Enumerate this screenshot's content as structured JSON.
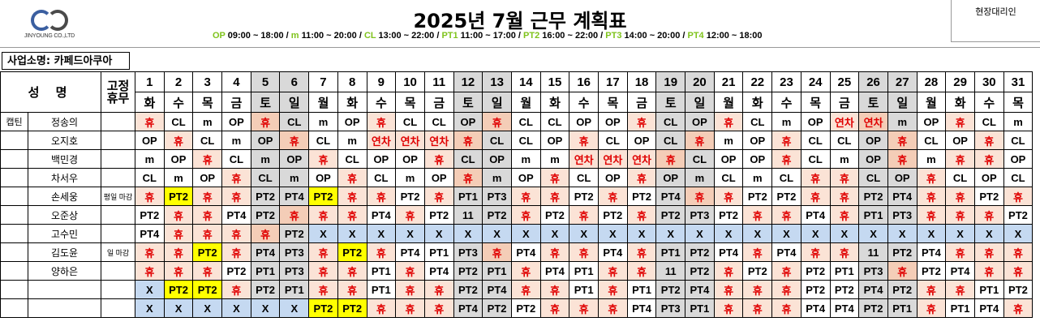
{
  "header": {
    "logo_text": "JINYOUNG CO.,LTD",
    "title": "2025년 7월 근무 계획표",
    "legend": [
      {
        "code": "OP",
        "time": "09:00 ~ 18:00"
      },
      {
        "code": "m",
        "time": "11:00 ~ 20:00"
      },
      {
        "code": "CL",
        "time": "13:00 ~ 22:00"
      },
      {
        "code": "PT1",
        "time": "11:00 ~ 17:00"
      },
      {
        "code": "PT2",
        "time": "16:00 ~ 22:00"
      },
      {
        "code": "PT3",
        "time": "14:00 ~ 20:00"
      },
      {
        "code": "PT4",
        "time": "12:00 ~ 18:00"
      }
    ],
    "agent_label": "현장대리인"
  },
  "store": {
    "label": "사업소명: 카페드아쿠아"
  },
  "table": {
    "name_header": "성 명",
    "fixed_off_header": [
      "고정",
      "휴무"
    ],
    "days": [
      "1",
      "2",
      "3",
      "4",
      "5",
      "6",
      "7",
      "8",
      "9",
      "10",
      "11",
      "12",
      "13",
      "14",
      "15",
      "16",
      "17",
      "18",
      "19",
      "20",
      "21",
      "22",
      "23",
      "24",
      "25",
      "26",
      "27",
      "28",
      "29",
      "30",
      "31"
    ],
    "weekdays": [
      "화",
      "수",
      "목",
      "금",
      "토",
      "일",
      "월",
      "화",
      "수",
      "목",
      "금",
      "토",
      "일",
      "월",
      "화",
      "수",
      "목",
      "금",
      "토",
      "일",
      "월",
      "화",
      "수",
      "목",
      "금",
      "토",
      "일",
      "월",
      "화",
      "수",
      "목"
    ],
    "weekend_index": [
      4,
      5,
      11,
      12,
      18,
      19,
      25,
      26
    ],
    "rows": [
      {
        "category": "캡틴",
        "name": "정송의",
        "note": "",
        "cells": [
          "휴",
          "CL",
          "m",
          "OP",
          "휴",
          "CL",
          "m",
          "OP",
          "휴",
          "CL",
          "CL",
          "OP",
          "휴",
          "CL",
          "CL",
          "OP",
          "OP",
          "휴",
          "CL",
          "OP",
          "휴",
          "CL",
          "m",
          "OP",
          "연차",
          "연차",
          "m",
          "OP",
          "휴",
          "CL",
          "m"
        ]
      },
      {
        "category": "",
        "name": "오지호",
        "note": "",
        "cells": [
          "OP",
          "휴",
          "CL",
          "m",
          "OP",
          "휴",
          "CL",
          "m",
          "연차",
          "연차",
          "연차",
          "휴",
          "CL",
          "CL",
          "OP",
          "휴",
          "CL",
          "OP",
          "CL",
          "휴",
          "m",
          "OP",
          "휴",
          "CL",
          "CL",
          "OP",
          "휴",
          "CL",
          "OP",
          "휴",
          "CL"
        ]
      },
      {
        "category": "",
        "name": "백민경",
        "note": "",
        "cells": [
          "m",
          "OP",
          "휴",
          "CL",
          "m",
          "OP",
          "휴",
          "CL",
          "OP",
          "OP",
          "휴",
          "CL",
          "OP",
          "m",
          "m",
          "연차",
          "연차",
          "연차",
          "휴",
          "CL",
          "OP",
          "OP",
          "휴",
          "CL",
          "m",
          "OP",
          "휴",
          "m",
          "휴",
          "휴",
          "OP"
        ]
      },
      {
        "category": "",
        "name": "차서우",
        "note": "",
        "cells": [
          "CL",
          "m",
          "OP",
          "휴",
          "CL",
          "m",
          "OP",
          "휴",
          "CL",
          "m",
          "OP",
          "휴",
          "m",
          "OP",
          "휴",
          "CL",
          "OP",
          "휴",
          "OP",
          "m",
          "CL",
          "m",
          "CL",
          "휴",
          "휴",
          "CL",
          "OP",
          "휴",
          "CL",
          "OP",
          "CL"
        ]
      },
      {
        "category": "",
        "name": "손세웅",
        "note": "평일 마감",
        "cells": [
          "휴",
          "PT2",
          "휴",
          "휴",
          "PT2",
          "PT4",
          "PT2",
          "휴",
          "휴",
          "PT2",
          "휴",
          "PT1",
          "PT3",
          "휴",
          "휴",
          "PT2",
          "휴",
          "PT2",
          "PT4",
          "휴",
          "휴",
          "PT2",
          "PT2",
          "휴",
          "휴",
          "PT2",
          "PT4",
          "휴",
          "휴",
          "PT2",
          "휴"
        ]
      },
      {
        "category": "",
        "name": "오준상",
        "note": "",
        "cells": [
          "PT2",
          "휴",
          "휴",
          "PT4",
          "PT2",
          "휴",
          "휴",
          "휴",
          "PT4",
          "휴",
          "PT2",
          "11",
          "PT2",
          "휴",
          "PT2",
          "휴",
          "PT2",
          "휴",
          "PT2",
          "PT3",
          "PT2",
          "휴",
          "휴",
          "PT4",
          "휴",
          "PT1",
          "PT3",
          "휴",
          "휴",
          "휴",
          "PT2"
        ]
      },
      {
        "category": "",
        "name": "고수민",
        "note": "",
        "cells": [
          "PT4",
          "휴",
          "휴",
          "휴",
          "휴",
          "PT2",
          "X",
          "X",
          "X",
          "X",
          "X",
          "X",
          "X",
          "X",
          "X",
          "X",
          "X",
          "X",
          "X",
          "X",
          "X",
          "X",
          "X",
          "X",
          "X",
          "X",
          "X",
          "X",
          "X",
          "X",
          "X"
        ]
      },
      {
        "category": "",
        "name": "김도윤",
        "note": "일 마감",
        "cells": [
          "휴",
          "휴",
          "PT2",
          "휴",
          "PT4",
          "PT3",
          "휴",
          "PT2",
          "휴",
          "PT4",
          "PT1",
          "PT3",
          "휴",
          "PT4",
          "휴",
          "휴",
          "PT4",
          "휴",
          "PT1",
          "PT2",
          "PT4",
          "휴",
          "PT4",
          "휴",
          "휴",
          "11",
          "PT2",
          "PT4",
          "휴",
          "휴",
          "휴"
        ]
      },
      {
        "category": "",
        "name": "양하은",
        "note": "",
        "cells": [
          "휴",
          "휴",
          "휴",
          "PT2",
          "PT1",
          "PT3",
          "휴",
          "휴",
          "PT1",
          "휴",
          "PT4",
          "PT2",
          "PT1",
          "휴",
          "PT4",
          "PT1",
          "휴",
          "휴",
          "11",
          "PT2",
          "휴",
          "PT2",
          "휴",
          "PT2",
          "PT1",
          "PT3",
          "휴",
          "PT2",
          "PT4",
          "휴",
          "휴"
        ]
      },
      {
        "category": "",
        "name": "",
        "note": "",
        "cells": [
          "X",
          "PT2",
          "PT2",
          "휴",
          "PT2",
          "PT1",
          "휴",
          "휴",
          "PT1",
          "휴",
          "휴",
          "PT2",
          "PT4",
          "휴",
          "휴",
          "PT1",
          "휴",
          "PT1",
          "PT2",
          "PT4",
          "휴",
          "휴",
          "휴",
          "PT2",
          "PT2",
          "PT4",
          "PT2",
          "휴",
          "휴",
          "PT1",
          "PT2"
        ]
      },
      {
        "category": "",
        "name": "",
        "note": "",
        "cells": [
          "X",
          "X",
          "X",
          "X",
          "X",
          "X",
          "PT2",
          "PT2",
          "휴",
          "휴",
          "휴",
          "PT4",
          "PT2",
          "PT2",
          "휴",
          "휴",
          "휴",
          "PT4",
          "PT3",
          "PT1",
          "휴",
          "휴",
          "휴",
          "PT4",
          "PT4",
          "PT2",
          "PT1",
          "휴",
          "PT1",
          "PT4",
          "휴"
        ]
      }
    ],
    "highlight_yellow": [
      [
        4,
        1
      ],
      [
        4,
        6
      ],
      [
        7,
        2
      ],
      [
        7,
        7
      ],
      [
        9,
        1
      ],
      [
        9,
        2
      ],
      [
        10,
        6
      ],
      [
        10,
        7
      ]
    ],
    "colors": {
      "weekend": "#d9d9d9",
      "holiday": "#fbe3d6",
      "red_text": "#e00000",
      "yellow": "#ffff00",
      "unavailable": "#c5d9f1",
      "legend_code": "#7fc31c"
    }
  }
}
